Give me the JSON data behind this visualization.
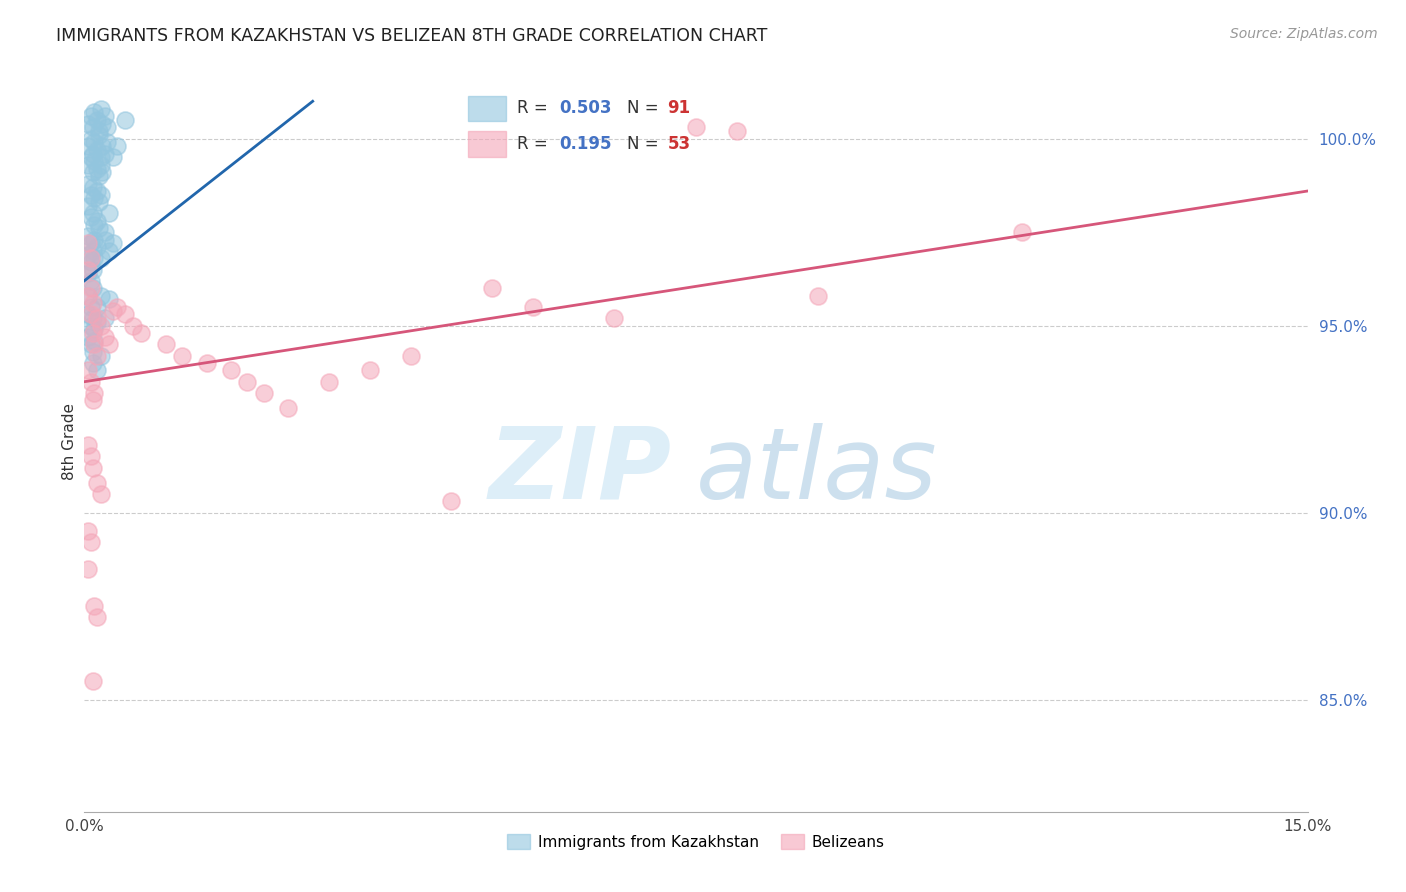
{
  "title": "IMMIGRANTS FROM KAZAKHSTAN VS BELIZEAN 8TH GRADE CORRELATION CHART",
  "source": "Source: ZipAtlas.com",
  "ylabel": "8th Grade",
  "x_min": 0.0,
  "x_max": 15.0,
  "y_min": 82.0,
  "y_max": 101.8,
  "blue_color": "#92c5de",
  "pink_color": "#f4a6b8",
  "blue_line_color": "#2166ac",
  "pink_line_color": "#d6567a",
  "blue_line_x0": 0.0,
  "blue_line_y0": 96.2,
  "blue_line_x1": 2.8,
  "blue_line_y1": 101.0,
  "pink_line_x0": 0.0,
  "pink_line_y0": 93.5,
  "pink_line_x1": 15.0,
  "pink_line_y1": 98.6,
  "blue_scatter_x": [
    0.05,
    0.08,
    0.1,
    0.12,
    0.15,
    0.18,
    0.2,
    0.22,
    0.25,
    0.28,
    0.05,
    0.08,
    0.1,
    0.12,
    0.15,
    0.18,
    0.2,
    0.22,
    0.25,
    0.28,
    0.05,
    0.08,
    0.1,
    0.12,
    0.15,
    0.18,
    0.2,
    0.22,
    0.05,
    0.08,
    0.1,
    0.12,
    0.15,
    0.18,
    0.2,
    0.05,
    0.08,
    0.1,
    0.12,
    0.15,
    0.18,
    0.05,
    0.08,
    0.1,
    0.12,
    0.15,
    0.05,
    0.08,
    0.1,
    0.12,
    0.05,
    0.08,
    0.1,
    0.05,
    0.08,
    0.05,
    0.08,
    0.1,
    0.12,
    0.15,
    0.05,
    0.08,
    0.1,
    0.12,
    0.3,
    0.35,
    0.4,
    0.5,
    0.25,
    0.3,
    0.35,
    0.2,
    0.25,
    0.15,
    0.2,
    0.25,
    0.3,
    0.1,
    0.15,
    0.2
  ],
  "blue_scatter_y": [
    100.4,
    100.6,
    100.3,
    100.7,
    100.5,
    100.2,
    100.8,
    100.4,
    100.6,
    100.3,
    99.8,
    100.0,
    99.6,
    99.9,
    99.7,
    100.1,
    99.5,
    99.8,
    99.6,
    99.9,
    99.3,
    99.5,
    99.1,
    99.4,
    99.2,
    99.0,
    99.3,
    99.1,
    98.8,
    98.5,
    98.7,
    98.4,
    98.6,
    98.3,
    98.5,
    98.2,
    97.9,
    98.0,
    97.7,
    97.8,
    97.6,
    97.4,
    97.2,
    97.0,
    97.3,
    97.1,
    96.9,
    96.7,
    96.5,
    96.8,
    96.4,
    96.2,
    96.0,
    95.8,
    95.5,
    95.3,
    95.0,
    95.2,
    94.9,
    95.1,
    94.7,
    94.5,
    94.3,
    94.6,
    98.0,
    99.5,
    99.8,
    100.5,
    97.5,
    97.0,
    97.2,
    96.8,
    97.3,
    95.5,
    95.8,
    95.2,
    95.7,
    94.0,
    93.8,
    94.2
  ],
  "pink_scatter_x": [
    0.05,
    0.08,
    0.1,
    0.12,
    0.15,
    0.05,
    0.08,
    0.1,
    0.12,
    0.05,
    0.08,
    0.1,
    0.05,
    0.08,
    0.15,
    0.2,
    0.25,
    0.3,
    0.35,
    0.4,
    0.5,
    0.6,
    0.7,
    1.0,
    1.2,
    1.5,
    1.8,
    2.0,
    2.2,
    2.5,
    3.0,
    3.5,
    4.0,
    5.0,
    5.5,
    6.5,
    7.5,
    8.0,
    9.0,
    11.5,
    4.5,
    0.05,
    0.08,
    0.1,
    0.15,
    0.2,
    0.05,
    0.08,
    0.05,
    0.12,
    0.15,
    0.1
  ],
  "pink_scatter_y": [
    95.8,
    95.3,
    94.8,
    94.5,
    94.2,
    93.8,
    93.5,
    93.0,
    93.2,
    96.5,
    96.0,
    95.6,
    97.2,
    96.8,
    95.2,
    95.0,
    94.7,
    94.5,
    95.4,
    95.5,
    95.3,
    95.0,
    94.8,
    94.5,
    94.2,
    94.0,
    93.8,
    93.5,
    93.2,
    92.8,
    93.5,
    93.8,
    94.2,
    96.0,
    95.5,
    95.2,
    100.3,
    100.2,
    95.8,
    97.5,
    90.3,
    91.8,
    91.5,
    91.2,
    90.8,
    90.5,
    89.5,
    89.2,
    88.5,
    87.5,
    87.2,
    85.5
  ]
}
